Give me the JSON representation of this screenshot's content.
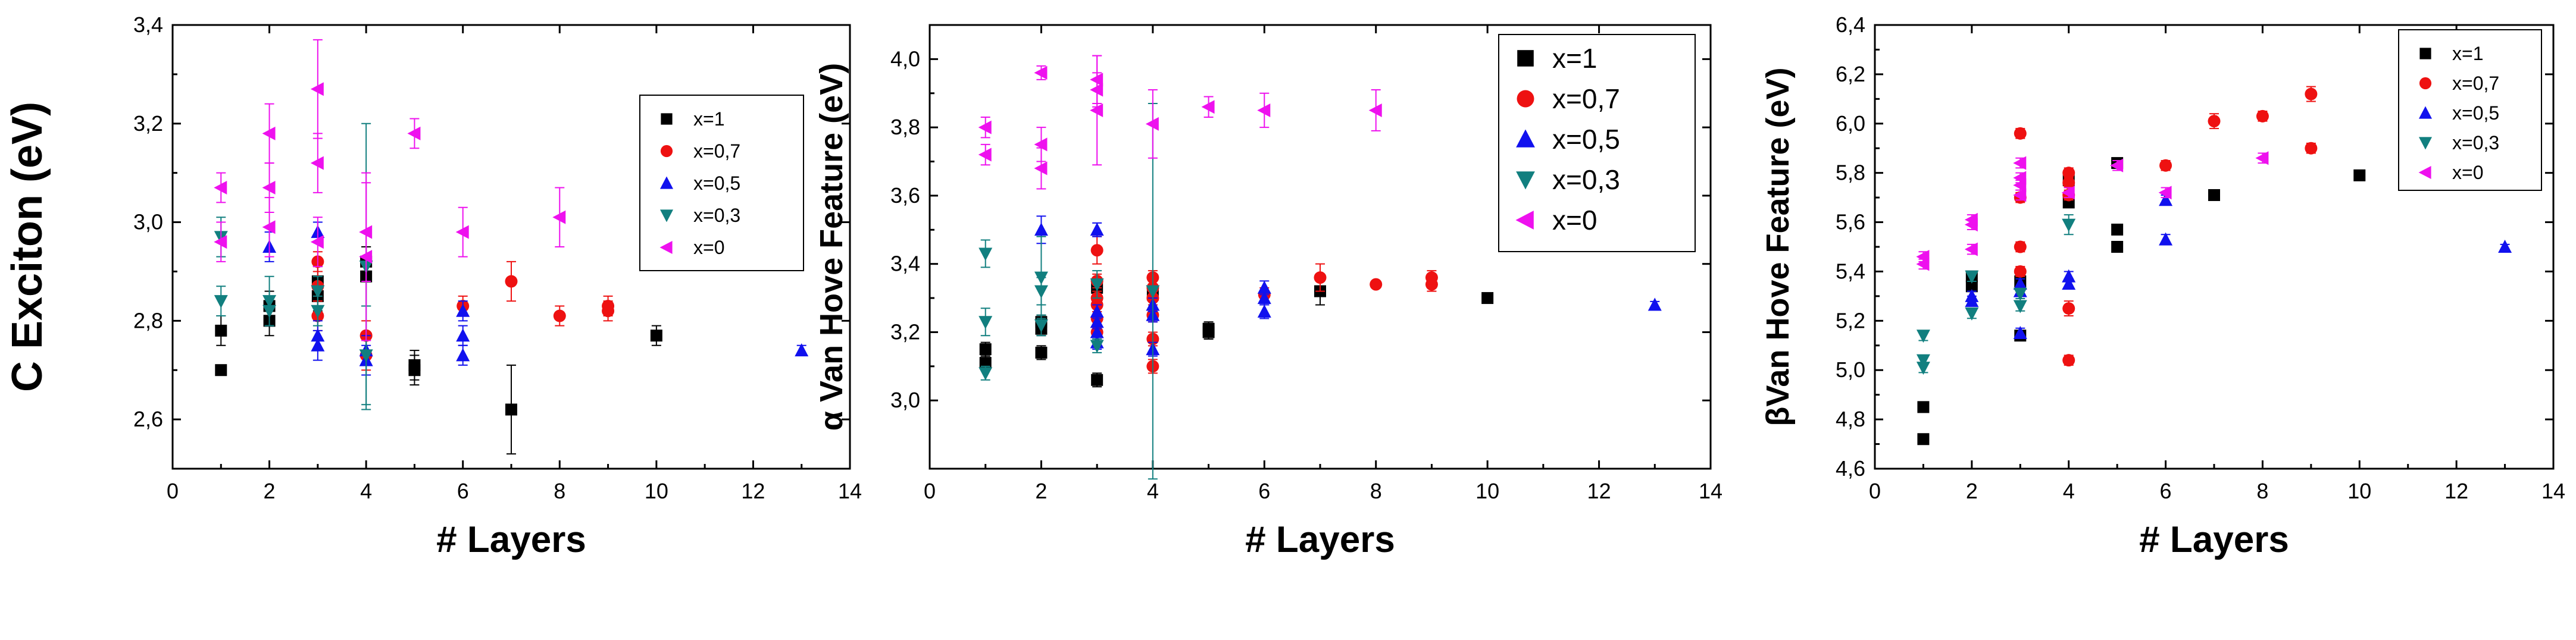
{
  "chart_data": [
    {
      "type": "scatter",
      "xlabel": "# Layers",
      "ylabel": "C Exciton (eV)",
      "xlim": [
        0,
        14
      ],
      "ylim": [
        2.5,
        3.4
      ],
      "xticks": [
        0,
        2,
        4,
        6,
        8,
        10,
        12,
        14
      ],
      "xtick_labels": [
        "0",
        "2",
        "4",
        "6",
        "8",
        "10",
        "12",
        "14"
      ],
      "yticks": [
        2.6,
        2.8,
        3.0,
        3.2,
        3.4
      ],
      "ytick_labels": [
        "2,6",
        "2,8",
        "3,0",
        "3,2",
        "3,4"
      ],
      "legend_position": "top-right",
      "series": [
        {
          "name": "x=1",
          "marker": "square",
          "color": "#000000",
          "points": [
            [
              1,
              2.7
            ],
            [
              1,
              2.78
            ],
            [
              2,
              2.8
            ],
            [
              2,
              2.83
            ],
            [
              3,
              2.85
            ],
            [
              3,
              2.88
            ],
            [
              4,
              2.89
            ],
            [
              4,
              2.92
            ],
            [
              5,
              2.7
            ],
            [
              5,
              2.71
            ],
            [
              7,
              2.62
            ],
            [
              10,
              2.77
            ]
          ],
          "err": [
            0.01,
            0.03,
            0.03,
            0.03,
            0.03,
            0.03,
            0.06,
            0.03,
            0.03,
            0.03,
            0.09,
            0.02
          ]
        },
        {
          "name": "x=0,7",
          "marker": "circle",
          "color": "#ee1111",
          "points": [
            [
              3,
              2.81
            ],
            [
              3,
              2.87
            ],
            [
              3,
              2.92
            ],
            [
              4,
              2.73
            ],
            [
              4,
              2.77
            ],
            [
              6,
              2.83
            ],
            [
              7,
              2.88
            ],
            [
              8,
              2.81
            ],
            [
              9,
              2.82
            ],
            [
              9,
              2.83
            ]
          ],
          "err": [
            0.03,
            0.03,
            0.02,
            0.03,
            0.03,
            0.02,
            0.04,
            0.02,
            0.02,
            0.02
          ]
        },
        {
          "name": "x=0,5",
          "marker": "triangle-up",
          "color": "#1111ee",
          "points": [
            [
              2,
              2.95
            ],
            [
              3,
              2.75
            ],
            [
              3,
              2.77
            ],
            [
              3,
              2.98
            ],
            [
              4,
              2.72
            ],
            [
              4,
              2.74
            ],
            [
              6,
              2.73
            ],
            [
              6,
              2.77
            ],
            [
              6,
              2.82
            ],
            [
              13,
              2.74
            ]
          ],
          "err": [
            0.03,
            0.03,
            0.03,
            0.02,
            0.03,
            0.03,
            0.02,
            0.02,
            0.02,
            0.01
          ]
        },
        {
          "name": "x=0,3",
          "marker": "triangle-down",
          "color": "#117f7f",
          "points": [
            [
              1,
              2.84
            ],
            [
              1,
              2.97
            ],
            [
              2,
              2.82
            ],
            [
              2,
              2.84
            ],
            [
              3,
              2.82
            ],
            [
              3,
              2.86
            ],
            [
              4,
              2.73
            ],
            [
              4,
              2.91
            ]
          ],
          "err": [
            0.03,
            0.04,
            0.03,
            0.05,
            0.03,
            0.03,
            0.1,
            0.29
          ]
        },
        {
          "name": "x=0",
          "marker": "triangle-left",
          "color": "#ee11ee",
          "points": [
            [
              1,
              2.96
            ],
            [
              1,
              3.07
            ],
            [
              2,
              2.99
            ],
            [
              2,
              3.07
            ],
            [
              2,
              3.18
            ],
            [
              3,
              2.96
            ],
            [
              3,
              3.12
            ],
            [
              3,
              3.27
            ],
            [
              4,
              2.98
            ],
            [
              4,
              2.93
            ],
            [
              5,
              3.18
            ],
            [
              6,
              2.98
            ],
            [
              8,
              3.01
            ]
          ],
          "err": [
            0.04,
            0.03,
            0.06,
            0.05,
            0.06,
            0.05,
            0.06,
            0.1,
            0.1,
            0.17,
            0.03,
            0.05,
            0.06
          ]
        }
      ]
    },
    {
      "type": "scatter",
      "xlabel": "# Layers",
      "ylabel": "α Van Hove Feature (eV)",
      "xlim": [
        0,
        14
      ],
      "ylim": [
        2.8,
        4.1
      ],
      "xticks": [
        0,
        2,
        4,
        6,
        8,
        10,
        12,
        14
      ],
      "xtick_labels": [
        "0",
        "2",
        "4",
        "6",
        "8",
        "10",
        "12",
        "14"
      ],
      "yticks": [
        3.0,
        3.2,
        3.4,
        3.6,
        3.8,
        4.0
      ],
      "ytick_labels": [
        "3,0",
        "3,2",
        "3,4",
        "3,6",
        "3,8",
        "4,0"
      ],
      "legend_position": "top-right",
      "series": [
        {
          "name": "x=1",
          "marker": "square",
          "color": "#000000",
          "points": [
            [
              1,
              3.11
            ],
            [
              1,
              3.15
            ],
            [
              2,
              3.14
            ],
            [
              2,
              3.21
            ],
            [
              2,
              3.23
            ],
            [
              3,
              3.06
            ],
            [
              3,
              3.33
            ],
            [
              4,
              3.31
            ],
            [
              5,
              3.2
            ],
            [
              5,
              3.21
            ],
            [
              7,
              3.32
            ],
            [
              10,
              3.3
            ]
          ],
          "err": [
            0.02,
            0.02,
            0.02,
            0.02,
            0.02,
            0.02,
            0.02,
            0.02,
            0.02,
            0.02,
            0.04,
            0.01
          ]
        },
        {
          "name": "x=0,7",
          "marker": "circle",
          "color": "#ee1111",
          "points": [
            [
              3,
              3.2
            ],
            [
              3,
              3.24
            ],
            [
              3,
              3.28
            ],
            [
              3,
              3.3
            ],
            [
              3,
              3.35
            ],
            [
              3,
              3.44
            ],
            [
              4,
              3.1
            ],
            [
              4,
              3.18
            ],
            [
              4,
              3.25
            ],
            [
              4,
              3.3
            ],
            [
              4,
              3.33
            ],
            [
              4,
              3.36
            ],
            [
              6,
              3.31
            ],
            [
              7,
              3.36
            ],
            [
              8,
              3.34
            ],
            [
              9,
              3.34
            ],
            [
              9,
              3.36
            ]
          ],
          "err": [
            0.02,
            0.02,
            0.02,
            0.02,
            0.02,
            0.04,
            0.02,
            0.02,
            0.02,
            0.02,
            0.02,
            0.02,
            0.02,
            0.04,
            0.01,
            0.02,
            0.02
          ]
        },
        {
          "name": "x=0,5",
          "marker": "triangle-up",
          "color": "#1111ee",
          "points": [
            [
              2,
              3.5
            ],
            [
              3,
              3.17
            ],
            [
              3,
              3.2
            ],
            [
              3,
              3.23
            ],
            [
              3,
              3.26
            ],
            [
              3,
              3.5
            ],
            [
              4,
              3.15
            ],
            [
              4,
              3.25
            ],
            [
              4,
              3.28
            ],
            [
              6,
              3.26
            ],
            [
              6,
              3.3
            ],
            [
              6,
              3.33
            ],
            [
              13,
              3.28
            ]
          ],
          "err": [
            0.04,
            0.02,
            0.02,
            0.02,
            0.02,
            0.02,
            0.02,
            0.02,
            0.02,
            0.02,
            0.02,
            0.02,
            0.01
          ]
        },
        {
          "name": "x=0,3",
          "marker": "triangle-down",
          "color": "#117f7f",
          "points": [
            [
              1,
              3.08
            ],
            [
              1,
              3.23
            ],
            [
              1,
              3.43
            ],
            [
              2,
              3.22
            ],
            [
              2,
              3.32
            ],
            [
              2,
              3.36
            ],
            [
              3,
              3.16
            ],
            [
              3,
              3.34
            ],
            [
              4,
              3.32
            ]
          ],
          "err": [
            0.02,
            0.04,
            0.04,
            0.03,
            0.04,
            0.12,
            0.02,
            0.04,
            0.55
          ]
        },
        {
          "name": "x=0",
          "marker": "triangle-left",
          "color": "#ee11ee",
          "points": [
            [
              1,
              3.72
            ],
            [
              1,
              3.8
            ],
            [
              2,
              3.68
            ],
            [
              2,
              3.75
            ],
            [
              2,
              3.96
            ],
            [
              3,
              3.85
            ],
            [
              3,
              3.91
            ],
            [
              3,
              3.94
            ],
            [
              4,
              3.81
            ],
            [
              5,
              3.86
            ],
            [
              6,
              3.85
            ],
            [
              8,
              3.85
            ]
          ],
          "err": [
            0.03,
            0.03,
            0.06,
            0.05,
            0.02,
            0.16,
            0.05,
            0.07,
            0.1,
            0.03,
            0.05,
            0.06
          ]
        }
      ]
    },
    {
      "type": "scatter",
      "xlabel": "# Layers",
      "ylabel": "βVan Hove Feature (eV)",
      "xlim": [
        0,
        14
      ],
      "ylim": [
        4.6,
        6.4
      ],
      "xticks": [
        0,
        2,
        4,
        6,
        8,
        10,
        12,
        14
      ],
      "xtick_labels": [
        "0",
        "2",
        "4",
        "6",
        "8",
        "10",
        "12",
        "14"
      ],
      "yticks": [
        4.6,
        4.8,
        5.0,
        5.2,
        5.4,
        5.6,
        5.8,
        6.0,
        6.2,
        6.4
      ],
      "ytick_labels": [
        "4,6",
        "4,8",
        "5,0",
        "5,2",
        "5,4",
        "5,6",
        "5,8",
        "6,0",
        "6,2",
        "6,4"
      ],
      "legend_position": "top-right",
      "series": [
        {
          "name": "x=1",
          "marker": "square",
          "color": "#000000",
          "points": [
            [
              1,
              4.72
            ],
            [
              1,
              4.85
            ],
            [
              2,
              5.34
            ],
            [
              2,
              5.38
            ],
            [
              3,
              5.14
            ],
            [
              3,
              5.36
            ],
            [
              4,
              5.68
            ],
            [
              4,
              5.77
            ],
            [
              5,
              5.5
            ],
            [
              5,
              5.57
            ],
            [
              5,
              5.84
            ],
            [
              7,
              5.71
            ],
            [
              10,
              5.79
            ]
          ],
          "err": [
            0.01,
            0.01,
            0.02,
            0.02,
            0.02,
            0.02,
            0.02,
            0.02,
            0.02,
            0.02,
            0.02,
            0.01,
            0.02
          ]
        },
        {
          "name": "x=0,7",
          "marker": "circle",
          "color": "#ee1111",
          "points": [
            [
              3,
              5.4
            ],
            [
              3,
              5.5
            ],
            [
              3,
              5.7
            ],
            [
              3,
              5.96
            ],
            [
              4,
              5.04
            ],
            [
              4,
              5.25
            ],
            [
              4,
              5.71
            ],
            [
              4,
              5.76
            ],
            [
              4,
              5.8
            ],
            [
              6,
              5.83
            ],
            [
              7,
              6.01
            ],
            [
              8,
              6.03
            ],
            [
              9,
              5.9
            ],
            [
              9,
              6.12
            ]
          ],
          "err": [
            0.02,
            0.02,
            0.02,
            0.02,
            0.02,
            0.03,
            0.02,
            0.02,
            0.02,
            0.02,
            0.03,
            0.02,
            0.02,
            0.03
          ]
        },
        {
          "name": "x=0,5",
          "marker": "triangle-up",
          "color": "#1111ee",
          "points": [
            [
              2,
              5.28
            ],
            [
              2,
              5.3
            ],
            [
              3,
              5.15
            ],
            [
              3,
              5.32
            ],
            [
              3,
              5.35
            ],
            [
              4,
              5.35
            ],
            [
              4,
              5.38
            ],
            [
              6,
              5.53
            ],
            [
              6,
              5.69
            ],
            [
              13,
              5.5
            ]
          ],
          "err": [
            0.02,
            0.02,
            0.02,
            0.02,
            0.02,
            0.02,
            0.02,
            0.02,
            0.02,
            0.01
          ]
        },
        {
          "name": "x=0,3",
          "marker": "triangle-down",
          "color": "#117f7f",
          "points": [
            [
              1,
              5.01
            ],
            [
              1,
              5.04
            ],
            [
              1,
              5.14
            ],
            [
              2,
              5.23
            ],
            [
              2,
              5.38
            ],
            [
              3,
              5.26
            ],
            [
              3,
              5.31
            ],
            [
              4,
              5.59
            ]
          ],
          "err": [
            0.02,
            0.02,
            0.02,
            0.02,
            0.02,
            0.02,
            0.02,
            0.04
          ]
        },
        {
          "name": "x=0",
          "marker": "triangle-left",
          "color": "#ee11ee",
          "points": [
            [
              1,
              5.43
            ],
            [
              1,
              5.46
            ],
            [
              2,
              5.49
            ],
            [
              2,
              5.59
            ],
            [
              2,
              5.61
            ],
            [
              3,
              5.71
            ],
            [
              3,
              5.75
            ],
            [
              3,
              5.78
            ],
            [
              3,
              5.84
            ],
            [
              4,
              5.72
            ],
            [
              5,
              5.83
            ],
            [
              6,
              5.72
            ],
            [
              8,
              5.86
            ]
          ],
          "err": [
            0.02,
            0.02,
            0.02,
            0.02,
            0.02,
            0.02,
            0.02,
            0.02,
            0.02,
            0.02,
            0.02,
            0.02,
            0.02
          ]
        }
      ]
    }
  ]
}
